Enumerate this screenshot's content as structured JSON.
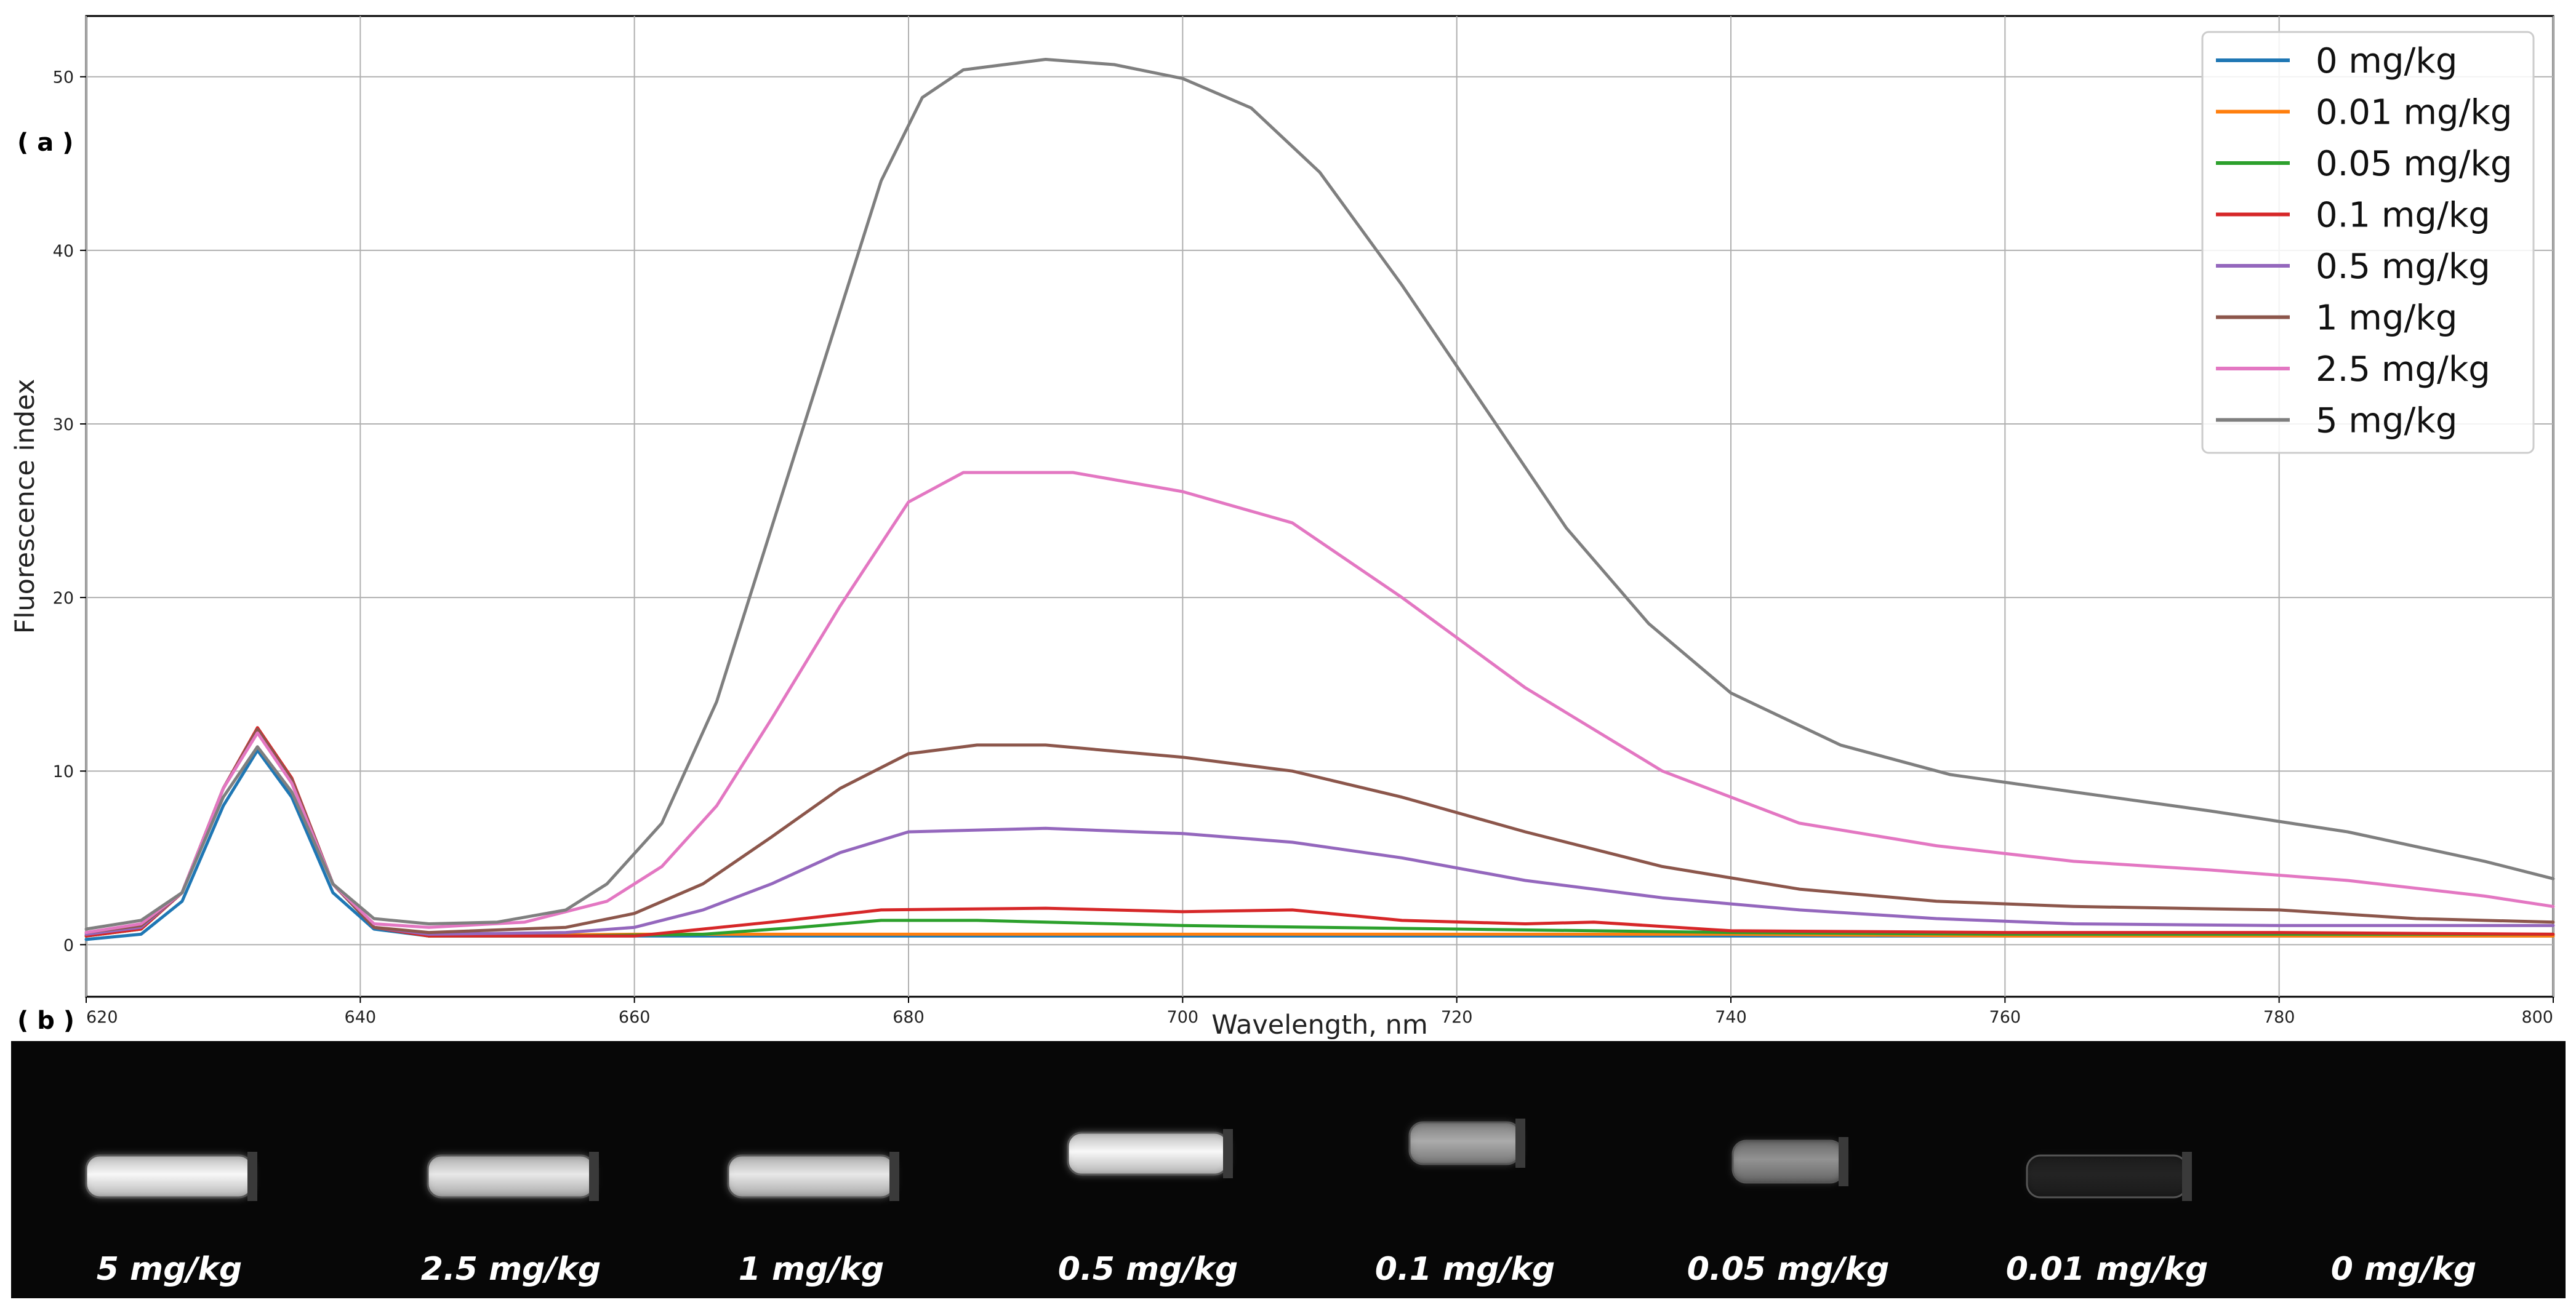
{
  "panel_a_label": "( a )",
  "panel_b_label": "( b )",
  "chart_data": {
    "type": "line",
    "title": "",
    "xlabel": "Wavelength, nm",
    "ylabel": "Fluorescence index",
    "xlim": [
      620,
      800
    ],
    "ylim": [
      -3,
      53.5
    ],
    "x_ticks": [
      620,
      640,
      660,
      680,
      700,
      720,
      740,
      760,
      780,
      800
    ],
    "y_ticks": [
      0,
      10,
      20,
      30,
      40,
      50
    ],
    "grid": true,
    "legend_position": "top-right",
    "series": [
      {
        "name": "0 mg/kg",
        "color": "#1f77b4",
        "points": [
          [
            620,
            0.3
          ],
          [
            624,
            0.6
          ],
          [
            627,
            2.5
          ],
          [
            630,
            8.0
          ],
          [
            632.5,
            11.2
          ],
          [
            635,
            8.5
          ],
          [
            638,
            3.0
          ],
          [
            641,
            0.9
          ],
          [
            645,
            0.5
          ],
          [
            660,
            0.5
          ],
          [
            680,
            0.5
          ],
          [
            700,
            0.5
          ],
          [
            720,
            0.5
          ],
          [
            740,
            0.5
          ],
          [
            760,
            0.5
          ],
          [
            780,
            0.5
          ],
          [
            800,
            0.5
          ]
        ]
      },
      {
        "name": "0.01 mg/kg",
        "color": "#ff7f0e",
        "points": [
          [
            620,
            0.5
          ],
          [
            624,
            0.9
          ],
          [
            627,
            3.0
          ],
          [
            630,
            9.0
          ],
          [
            632.5,
            12.3
          ],
          [
            635,
            9.5
          ],
          [
            638,
            3.5
          ],
          [
            641,
            1.0
          ],
          [
            645,
            0.5
          ],
          [
            660,
            0.6
          ],
          [
            680,
            0.6
          ],
          [
            700,
            0.6
          ],
          [
            720,
            0.6
          ],
          [
            740,
            0.6
          ],
          [
            760,
            0.5
          ],
          [
            780,
            0.5
          ],
          [
            800,
            0.5
          ]
        ]
      },
      {
        "name": "0.05 mg/kg",
        "color": "#2ca02c",
        "points": [
          [
            620,
            0.5
          ],
          [
            624,
            0.9
          ],
          [
            627,
            3.0
          ],
          [
            630,
            9.0
          ],
          [
            632.5,
            12.4
          ],
          [
            635,
            9.5
          ],
          [
            638,
            3.5
          ],
          [
            641,
            1.0
          ],
          [
            645,
            0.5
          ],
          [
            655,
            0.5
          ],
          [
            665,
            0.6
          ],
          [
            672,
            1.0
          ],
          [
            678,
            1.4
          ],
          [
            685,
            1.4
          ],
          [
            700,
            1.1
          ],
          [
            720,
            0.9
          ],
          [
            740,
            0.7
          ],
          [
            760,
            0.6
          ],
          [
            780,
            0.6
          ],
          [
            800,
            0.6
          ]
        ]
      },
      {
        "name": "0.1 mg/kg",
        "color": "#d62728",
        "points": [
          [
            620,
            0.5
          ],
          [
            624,
            0.9
          ],
          [
            627,
            3.0
          ],
          [
            630,
            9.0
          ],
          [
            632.5,
            12.5
          ],
          [
            635,
            9.6
          ],
          [
            638,
            3.5
          ],
          [
            641,
            1.0
          ],
          [
            645,
            0.5
          ],
          [
            660,
            0.5
          ],
          [
            665,
            0.9
          ],
          [
            670,
            1.3
          ],
          [
            678,
            2.0
          ],
          [
            690,
            2.1
          ],
          [
            700,
            1.9
          ],
          [
            708,
            2.0
          ],
          [
            716,
            1.4
          ],
          [
            725,
            1.2
          ],
          [
            730,
            1.3
          ],
          [
            740,
            0.8
          ],
          [
            760,
            0.7
          ],
          [
            780,
            0.7
          ],
          [
            800,
            0.6
          ]
        ]
      },
      {
        "name": "0.5 mg/kg",
        "color": "#9467bd",
        "points": [
          [
            620,
            0.6
          ],
          [
            624,
            1.0
          ],
          [
            627,
            3.0
          ],
          [
            630,
            9.0
          ],
          [
            632.5,
            12.4
          ],
          [
            635,
            9.5
          ],
          [
            638,
            3.5
          ],
          [
            641,
            1.0
          ],
          [
            645,
            0.6
          ],
          [
            655,
            0.7
          ],
          [
            660,
            1.0
          ],
          [
            665,
            2.0
          ],
          [
            670,
            3.5
          ],
          [
            675,
            5.3
          ],
          [
            680,
            6.5
          ],
          [
            690,
            6.7
          ],
          [
            700,
            6.4
          ],
          [
            708,
            5.9
          ],
          [
            716,
            5.0
          ],
          [
            725,
            3.7
          ],
          [
            735,
            2.7
          ],
          [
            745,
            2.0
          ],
          [
            755,
            1.5
          ],
          [
            765,
            1.2
          ],
          [
            780,
            1.1
          ],
          [
            800,
            1.1
          ]
        ]
      },
      {
        "name": "1 mg/kg",
        "color": "#8c564b",
        "points": [
          [
            620,
            0.7
          ],
          [
            624,
            1.1
          ],
          [
            627,
            3.0
          ],
          [
            630,
            9.0
          ],
          [
            632.5,
            12.4
          ],
          [
            635,
            9.5
          ],
          [
            638,
            3.5
          ],
          [
            641,
            1.0
          ],
          [
            645,
            0.7
          ],
          [
            655,
            1.0
          ],
          [
            660,
            1.8
          ],
          [
            665,
            3.5
          ],
          [
            670,
            6.2
          ],
          [
            675,
            9.0
          ],
          [
            680,
            11.0
          ],
          [
            685,
            11.5
          ],
          [
            690,
            11.5
          ],
          [
            700,
            10.8
          ],
          [
            708,
            10.0
          ],
          [
            716,
            8.5
          ],
          [
            725,
            6.5
          ],
          [
            735,
            4.5
          ],
          [
            745,
            3.2
          ],
          [
            755,
            2.5
          ],
          [
            765,
            2.2
          ],
          [
            780,
            2.0
          ],
          [
            790,
            1.5
          ],
          [
            800,
            1.3
          ]
        ]
      },
      {
        "name": "2.5 mg/kg",
        "color": "#e377c2",
        "points": [
          [
            620,
            0.7
          ],
          [
            624,
            1.2
          ],
          [
            627,
            3.0
          ],
          [
            630,
            9.0
          ],
          [
            632.5,
            12.2
          ],
          [
            635,
            9.3
          ],
          [
            638,
            3.5
          ],
          [
            641,
            1.2
          ],
          [
            645,
            1.0
          ],
          [
            652,
            1.3
          ],
          [
            658,
            2.5
          ],
          [
            662,
            4.5
          ],
          [
            666,
            8.0
          ],
          [
            670,
            13.0
          ],
          [
            675,
            19.5
          ],
          [
            680,
            25.5
          ],
          [
            684,
            27.2
          ],
          [
            692,
            27.2
          ],
          [
            700,
            26.1
          ],
          [
            708,
            24.3
          ],
          [
            716,
            20.0
          ],
          [
            725,
            14.8
          ],
          [
            735,
            10.0
          ],
          [
            745,
            7.0
          ],
          [
            755,
            5.7
          ],
          [
            765,
            4.8
          ],
          [
            775,
            4.3
          ],
          [
            785,
            3.7
          ],
          [
            795,
            2.8
          ],
          [
            800,
            2.2
          ]
        ]
      },
      {
        "name": "5 mg/kg",
        "color": "#7f7f7f",
        "points": [
          [
            620,
            0.9
          ],
          [
            624,
            1.4
          ],
          [
            627,
            3.0
          ],
          [
            630,
            8.5
          ],
          [
            632.5,
            11.4
          ],
          [
            635,
            8.8
          ],
          [
            638,
            3.5
          ],
          [
            641,
            1.5
          ],
          [
            645,
            1.2
          ],
          [
            650,
            1.3
          ],
          [
            655,
            2.0
          ],
          [
            658,
            3.5
          ],
          [
            662,
            7.0
          ],
          [
            666,
            14.0
          ],
          [
            670,
            24.0
          ],
          [
            674,
            34.0
          ],
          [
            678,
            44.0
          ],
          [
            681,
            48.8
          ],
          [
            684,
            50.4
          ],
          [
            690,
            51.0
          ],
          [
            695,
            50.7
          ],
          [
            700,
            49.9
          ],
          [
            705,
            48.2
          ],
          [
            710,
            44.5
          ],
          [
            716,
            38.0
          ],
          [
            722,
            31.0
          ],
          [
            728,
            24.0
          ],
          [
            734,
            18.5
          ],
          [
            740,
            14.5
          ],
          [
            748,
            11.5
          ],
          [
            756,
            9.8
          ],
          [
            765,
            8.8
          ],
          [
            775,
            7.7
          ],
          [
            785,
            6.5
          ],
          [
            795,
            4.8
          ],
          [
            800,
            3.8
          ]
        ]
      }
    ]
  },
  "photo_panel": {
    "samples": [
      {
        "label": "5 mg/kg",
        "brightness": 0.95
      },
      {
        "label": "2.5 mg/kg",
        "brightness": 0.85
      },
      {
        "label": "1 mg/kg",
        "brightness": 0.85
      },
      {
        "label": "0.5 mg/kg",
        "brightness": 0.95
      },
      {
        "label": "0.1 mg/kg",
        "brightness": 0.55
      },
      {
        "label": "0.05 mg/kg",
        "brightness": 0.45
      },
      {
        "label": "0.01 mg/kg",
        "brightness": 0.08
      },
      {
        "label": "0 mg/kg",
        "brightness": 0.0
      }
    ]
  }
}
